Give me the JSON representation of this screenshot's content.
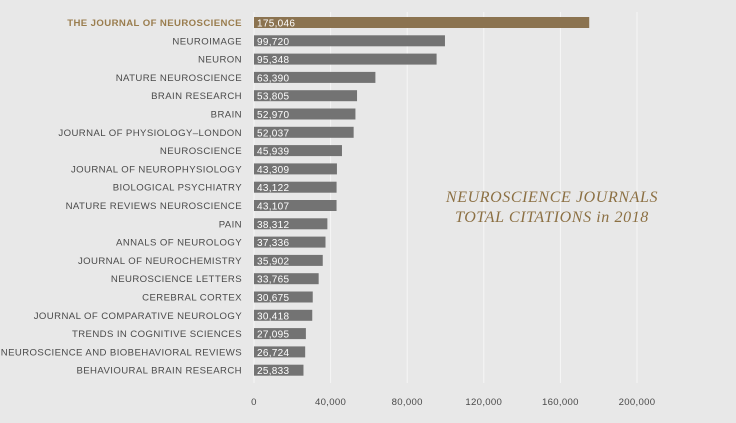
{
  "chart_data": {
    "type": "bar",
    "orientation": "horizontal",
    "title_lines": [
      "NEUROSCIENCE JOURNALS",
      "TOTAL CITATIONS in 2018"
    ],
    "xlabel": "",
    "ylabel": "",
    "xlim": [
      0,
      200000
    ],
    "x_ticks": [
      0,
      40000,
      80000,
      120000,
      160000,
      200000
    ],
    "x_tick_labels": [
      "0",
      "40,000",
      "80,000",
      "120,000",
      "160,000",
      "200,000"
    ],
    "grid": "vertical",
    "highlight_color": "#8b7350",
    "bar_color": "#737373",
    "categories": [
      "THE JOURNAL OF NEUROSCIENCE",
      "NEUROIMAGE",
      "NEURON",
      "NATURE NEUROSCIENCE",
      "BRAIN RESEARCH",
      "BRAIN",
      "JOURNAL OF PHYSIOLOGY–LONDON",
      "NEUROSCIENCE",
      "JOURNAL OF NEUROPHYSIOLOGY",
      "BIOLOGICAL PSYCHIATRY",
      "NATURE REVIEWS NEUROSCIENCE",
      "PAIN",
      "ANNALS OF NEUROLOGY",
      "JOURNAL OF NEUROCHEMISTRY",
      "NEUROSCIENCE LETTERS",
      "CEREBRAL CORTEX",
      "JOURNAL OF COMPARATIVE NEUROLOGY",
      "TRENDS IN COGNITIVE SCIENCES",
      "NEUROSCIENCE AND BIOBEHAVIORAL REVIEWS",
      "BEHAVIOURAL BRAIN RESEARCH"
    ],
    "values": [
      175046,
      99720,
      95348,
      63390,
      53805,
      52970,
      52037,
      45939,
      43309,
      43122,
      43107,
      38312,
      37336,
      35902,
      33765,
      30675,
      30418,
      27095,
      26724,
      25833
    ],
    "value_labels": [
      "175,046",
      "99,720",
      "95,348",
      "63,390",
      "53,805",
      "52,970",
      "52,037",
      "45,939",
      "43,309",
      "43,122",
      "43,107",
      "38,312",
      "37,336",
      "35,902",
      "33,765",
      "30,675",
      "30,418",
      "27,095",
      "26,724",
      "25,833"
    ],
    "highlight_index": 0
  }
}
